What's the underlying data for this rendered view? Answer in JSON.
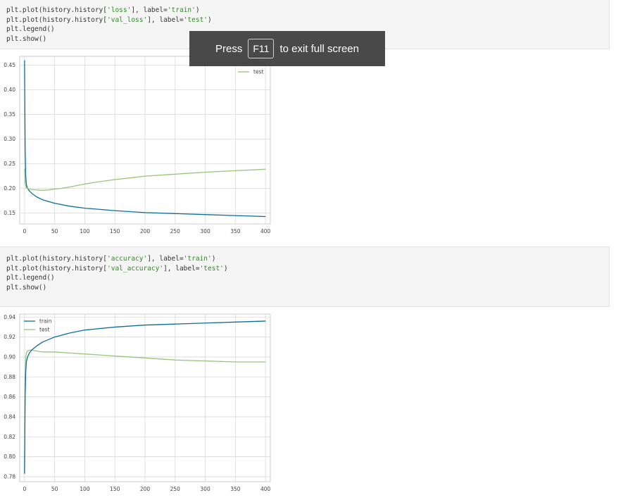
{
  "cells": [
    {
      "lines": [
        [
          [
            "plt.plot(history.history[",
            ""
          ],
          [
            "'loss'",
            "str"
          ],
          [
            "], label=",
            ""
          ],
          [
            "'train'",
            "str"
          ],
          [
            ")",
            ""
          ]
        ],
        [
          [
            "plt.plot(history.history[",
            ""
          ],
          [
            "'val_loss'",
            "str"
          ],
          [
            "], label=",
            ""
          ],
          [
            "'test'",
            "str"
          ],
          [
            ")",
            ""
          ]
        ],
        [
          [
            "plt.legend()",
            ""
          ]
        ],
        [
          [
            "plt.show()",
            ""
          ]
        ]
      ]
    },
    {
      "lines": [
        [
          [
            "plt.plot(history.history[",
            ""
          ],
          [
            "'accuracy'",
            "str"
          ],
          [
            "], label=",
            ""
          ],
          [
            "'train'",
            "str"
          ],
          [
            ")",
            ""
          ]
        ],
        [
          [
            "plt.plot(history.history[",
            ""
          ],
          [
            "'val_accuracy'",
            "str"
          ],
          [
            "], label=",
            ""
          ],
          [
            "'test'",
            "str"
          ],
          [
            ")",
            ""
          ]
        ],
        [
          [
            "plt.legend()",
            ""
          ]
        ],
        [
          [
            "plt.show()",
            ""
          ]
        ]
      ]
    }
  ],
  "overlay": {
    "press": "Press",
    "key": "F11",
    "rest": "to exit full screen"
  },
  "colors": {
    "train": "#1f77b4",
    "train_line": "#0b6e99",
    "test": "#99c47a",
    "grid": "#d9d9d9",
    "axes_edge": "#cccccc"
  },
  "chart_data": [
    {
      "type": "line",
      "title": "",
      "xlabel": "",
      "ylabel": "",
      "xlim": [
        -8,
        408
      ],
      "ylim": [
        0.128,
        0.468
      ],
      "xticks": [
        0,
        50,
        100,
        150,
        200,
        250,
        300,
        350,
        400
      ],
      "yticks": [
        0.15,
        0.2,
        0.25,
        0.3,
        0.35,
        0.4,
        0.45
      ],
      "ytick_labels": [
        "0.15",
        "0.20",
        "0.25",
        "0.30",
        "0.35",
        "0.40",
        "0.45"
      ],
      "grid": true,
      "legend": "top-right",
      "series": [
        {
          "name": "train",
          "x": [
            0,
            1,
            2,
            3,
            5,
            8,
            12,
            20,
            30,
            50,
            75,
            100,
            150,
            200,
            250,
            300,
            350,
            400
          ],
          "y": [
            0.46,
            0.28,
            0.225,
            0.208,
            0.2,
            0.195,
            0.19,
            0.183,
            0.177,
            0.17,
            0.164,
            0.16,
            0.155,
            0.151,
            0.149,
            0.147,
            0.145,
            0.143
          ]
        },
        {
          "name": "test",
          "x": [
            0,
            1,
            2,
            3,
            5,
            10,
            20,
            30,
            40,
            50,
            60,
            80,
            100,
            120,
            150,
            180,
            200,
            250,
            300,
            350,
            400
          ],
          "y": [
            0.24,
            0.215,
            0.205,
            0.201,
            0.2,
            0.198,
            0.197,
            0.196,
            0.197,
            0.199,
            0.2,
            0.204,
            0.209,
            0.213,
            0.218,
            0.222,
            0.225,
            0.229,
            0.233,
            0.236,
            0.239
          ]
        }
      ]
    },
    {
      "type": "line",
      "title": "",
      "xlabel": "",
      "ylabel": "",
      "xlim": [
        -8,
        408
      ],
      "ylim": [
        0.775,
        0.943
      ],
      "xticks": [
        0,
        50,
        100,
        150,
        200,
        250,
        300,
        350,
        400
      ],
      "yticks": [
        0.78,
        0.8,
        0.82,
        0.84,
        0.86,
        0.88,
        0.9,
        0.92,
        0.94
      ],
      "ytick_labels": [
        "0.78",
        "0.80",
        "0.82",
        "0.84",
        "0.86",
        "0.88",
        "0.90",
        "0.92",
        "0.94"
      ],
      "grid": true,
      "legend": "top-left",
      "series": [
        {
          "name": "train",
          "x": [
            0,
            1,
            2,
            3,
            5,
            8,
            12,
            20,
            30,
            50,
            75,
            100,
            150,
            200,
            250,
            300,
            350,
            400
          ],
          "y": [
            0.783,
            0.86,
            0.885,
            0.895,
            0.9,
            0.904,
            0.907,
            0.911,
            0.915,
            0.92,
            0.924,
            0.927,
            0.93,
            0.932,
            0.933,
            0.934,
            0.935,
            0.936
          ]
        },
        {
          "name": "test",
          "x": [
            0,
            1,
            2,
            3,
            5,
            10,
            20,
            30,
            50,
            75,
            100,
            150,
            200,
            250,
            300,
            350,
            400
          ],
          "y": [
            0.783,
            0.88,
            0.9,
            0.904,
            0.906,
            0.907,
            0.906,
            0.905,
            0.905,
            0.904,
            0.903,
            0.901,
            0.899,
            0.897,
            0.896,
            0.895,
            0.895
          ]
        }
      ]
    }
  ]
}
